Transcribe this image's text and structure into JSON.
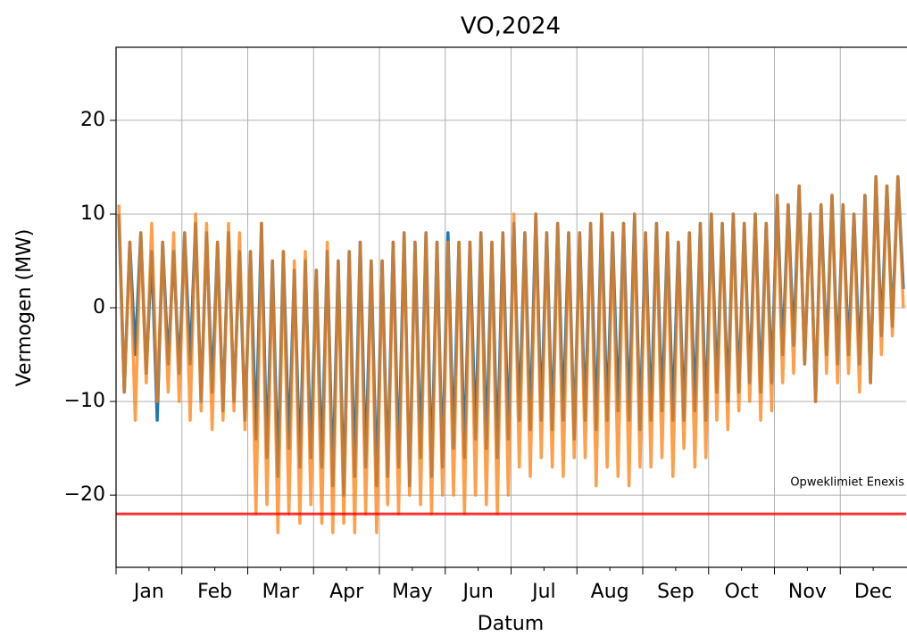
{
  "chart_data": {
    "type": "line",
    "title": "VO,2024",
    "xlabel": "Datum",
    "ylabel": "Vermogen (MW)",
    "categories": [
      "Jan",
      null,
      null,
      null,
      null,
      null,
      null,
      null,
      null,
      null,
      null,
      null,
      "Feb",
      null,
      null,
      null,
      null,
      null,
      null,
      null,
      null,
      null,
      null,
      null,
      "Mar",
      null,
      null,
      null,
      null,
      null,
      null,
      null,
      null,
      null,
      null,
      null,
      "Apr",
      null,
      null,
      null,
      null,
      null,
      null,
      null,
      null,
      null,
      null,
      null,
      "May",
      null,
      null,
      null,
      null,
      null,
      null,
      null,
      null,
      null,
      null,
      null,
      "Jun",
      null,
      null,
      null,
      null,
      null,
      null,
      null,
      null,
      null,
      null,
      null,
      "Jul",
      null,
      null,
      null,
      null,
      null,
      null,
      null,
      null,
      null,
      null,
      null,
      "Aug",
      null,
      null,
      null,
      null,
      null,
      null,
      null,
      null,
      null,
      null,
      null,
      "Sep",
      null,
      null,
      null,
      null,
      null,
      null,
      null,
      null,
      null,
      null,
      null,
      "Oct",
      null,
      null,
      null,
      null,
      null,
      null,
      null,
      null,
      null,
      null,
      null,
      "Nov",
      null,
      null,
      null,
      null,
      null,
      null,
      null,
      null,
      null,
      null,
      null,
      "Dec",
      null,
      null,
      null,
      null,
      null,
      null,
      null,
      null,
      null,
      null,
      null
    ],
    "series": [
      {
        "color": "#1f77b4",
        "values": [
          10,
          -9,
          7,
          -5,
          8,
          -7,
          6,
          -12,
          7,
          -6,
          6,
          -7,
          8,
          -6,
          9,
          -10,
          8,
          -9,
          7,
          -11,
          8,
          -10,
          6,
          -12,
          6,
          -14,
          9,
          -16,
          5,
          -18,
          6,
          -15,
          4,
          -17,
          5,
          -16,
          4,
          -17,
          6,
          -19,
          5,
          -20,
          6,
          -18,
          7,
          -17,
          5,
          -19,
          5,
          -18,
          7,
          -17,
          8,
          -19,
          7,
          -16,
          8,
          -18,
          7,
          -17,
          8,
          -15,
          7,
          -16,
          7,
          -14,
          8,
          -15,
          7,
          -16,
          8,
          -14,
          9,
          -12,
          8,
          -13,
          10,
          -12,
          8,
          -13,
          9,
          -12,
          8,
          -14,
          8,
          -12,
          9,
          -13,
          10,
          -12,
          8,
          -11,
          9,
          -12,
          10,
          -13,
          8,
          -12,
          9,
          -11,
          8,
          -12,
          7,
          -12,
          8,
          -11,
          9,
          -12,
          10,
          -9,
          9,
          -10,
          10,
          -9,
          9,
          -8,
          10,
          -9,
          9,
          -8,
          12,
          -5,
          11,
          -4,
          13,
          -6,
          10,
          -10,
          11,
          -5,
          12,
          -6,
          11,
          -5,
          10,
          -6,
          12,
          -8,
          14,
          -3,
          13,
          -2,
          14,
          2
        ]
      },
      {
        "color": "#ff7f0e",
        "values": [
          11,
          -9,
          7,
          -12,
          8,
          -8,
          9,
          -10,
          7,
          -9,
          8,
          -10,
          8,
          -12,
          10,
          -11,
          9,
          -13,
          7,
          -12,
          9,
          -11,
          8,
          -13,
          6,
          -22,
          9,
          -21,
          5,
          -24,
          6,
          -22,
          5,
          -23,
          6,
          -21,
          4,
          -23,
          7,
          -24,
          5,
          -23,
          6,
          -24,
          7,
          -22,
          5,
          -24,
          5,
          -21,
          7,
          -22,
          8,
          -20,
          7,
          -21,
          8,
          -22,
          7,
          -20,
          7,
          -20,
          7,
          -22,
          7,
          -20,
          8,
          -21,
          7,
          -22,
          8,
          -20,
          10,
          -17,
          8,
          -18,
          10,
          -16,
          8,
          -17,
          9,
          -18,
          8,
          -16,
          8,
          -16,
          9,
          -19,
          10,
          -17,
          8,
          -18,
          9,
          -19,
          10,
          -17,
          8,
          -17,
          9,
          -16,
          8,
          -18,
          7,
          -15,
          8,
          -17,
          9,
          -16,
          10,
          -12,
          9,
          -13,
          10,
          -11,
          9,
          -10,
          10,
          -12,
          9,
          -11,
          12,
          -8,
          11,
          -7,
          13,
          -6,
          10,
          -10,
          11,
          -7,
          12,
          -8,
          11,
          -7,
          10,
          -9,
          12,
          -8,
          14,
          -5,
          13,
          -3,
          14,
          0
        ]
      }
    ],
    "hlines": [
      {
        "value": -22,
        "label": "Opweklimiet Enexis",
        "color": "#ff0000"
      }
    ],
    "ylim": [
      -27.7,
      27.8
    ],
    "yticks": [
      {
        "value": -20,
        "label": "−20"
      },
      {
        "value": -10,
        "label": "−10"
      },
      0,
      10,
      20
    ],
    "grid": true
  }
}
